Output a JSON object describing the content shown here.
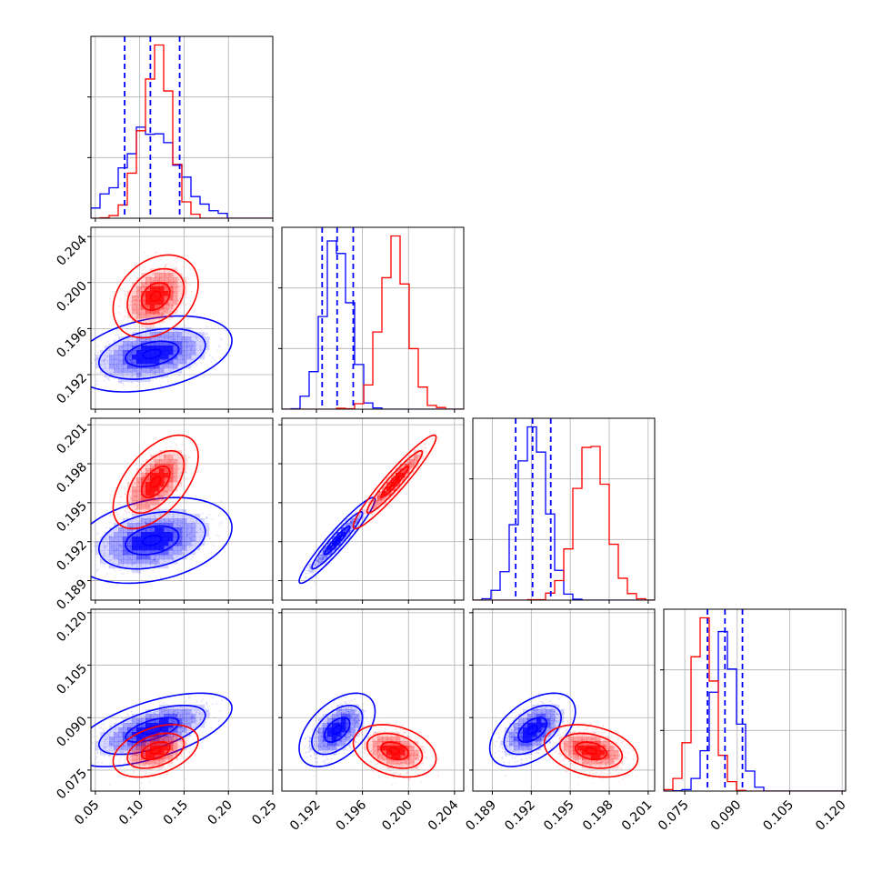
{
  "chart_data": {
    "type": "corner",
    "n_params": 4,
    "colors": {
      "series_a": "#0000ff",
      "series_b": "#ff0000",
      "grid": "#b0b0b0"
    },
    "ranges": [
      [
        0.045,
        0.25
      ],
      [
        0.189,
        0.2048
      ],
      [
        0.1875,
        0.2015
      ],
      [
        0.069,
        0.121
      ]
    ],
    "ticks": [
      [
        0.05,
        0.1,
        0.15,
        0.2,
        0.25
      ],
      [
        0.192,
        0.196,
        0.2,
        0.204
      ],
      [
        0.189,
        0.192,
        0.195,
        0.198,
        0.201
      ],
      [
        0.075,
        0.09,
        0.105,
        0.12
      ]
    ],
    "tick_labels": [
      [
        "0.05",
        "0.10",
        "0.15",
        "0.20",
        "0.25"
      ],
      [
        "0.192",
        "0.196",
        "0.200",
        "0.204"
      ],
      [
        "0.189",
        "0.192",
        "0.195",
        "0.198",
        "0.201"
      ],
      [
        "0.075",
        "0.090",
        "0.105",
        "0.120"
      ]
    ],
    "grid": true,
    "series": [
      {
        "color": "#0000ff",
        "mean": [
          0.114,
          0.1938,
          0.1921,
          0.0865
        ],
        "std": [
          0.03,
          0.0011,
          0.0011,
          0.0035
        ],
        "corr": [
          [
            1,
            0.35,
            0.3,
            0.6
          ],
          [
            0.35,
            1,
            0.95,
            0.5
          ],
          [
            0.3,
            0.95,
            1,
            0.5
          ],
          [
            0.6,
            0.5,
            0.5,
            1
          ]
        ],
        "quantiles": [
          [
            0.083,
            0.112,
            0.145
          ],
          [
            0.1925,
            0.1938,
            0.1952
          ],
          [
            0.1908,
            0.1921,
            0.1935
          ],
          [
            0.0815,
            0.0865,
            0.0915
          ]
        ]
      },
      {
        "color": "#ff0000",
        "mean": [
          0.118,
          0.1988,
          0.1966,
          0.0805
        ],
        "std": [
          0.016,
          0.0012,
          0.0012,
          0.0025
        ],
        "corr": [
          [
            1,
            0.3,
            0.55,
            0.4
          ],
          [
            0.3,
            1,
            0.95,
            -0.3
          ],
          [
            0.55,
            0.95,
            1,
            -0.3
          ],
          [
            0.4,
            -0.3,
            -0.3,
            1
          ]
        ]
      }
    ]
  }
}
